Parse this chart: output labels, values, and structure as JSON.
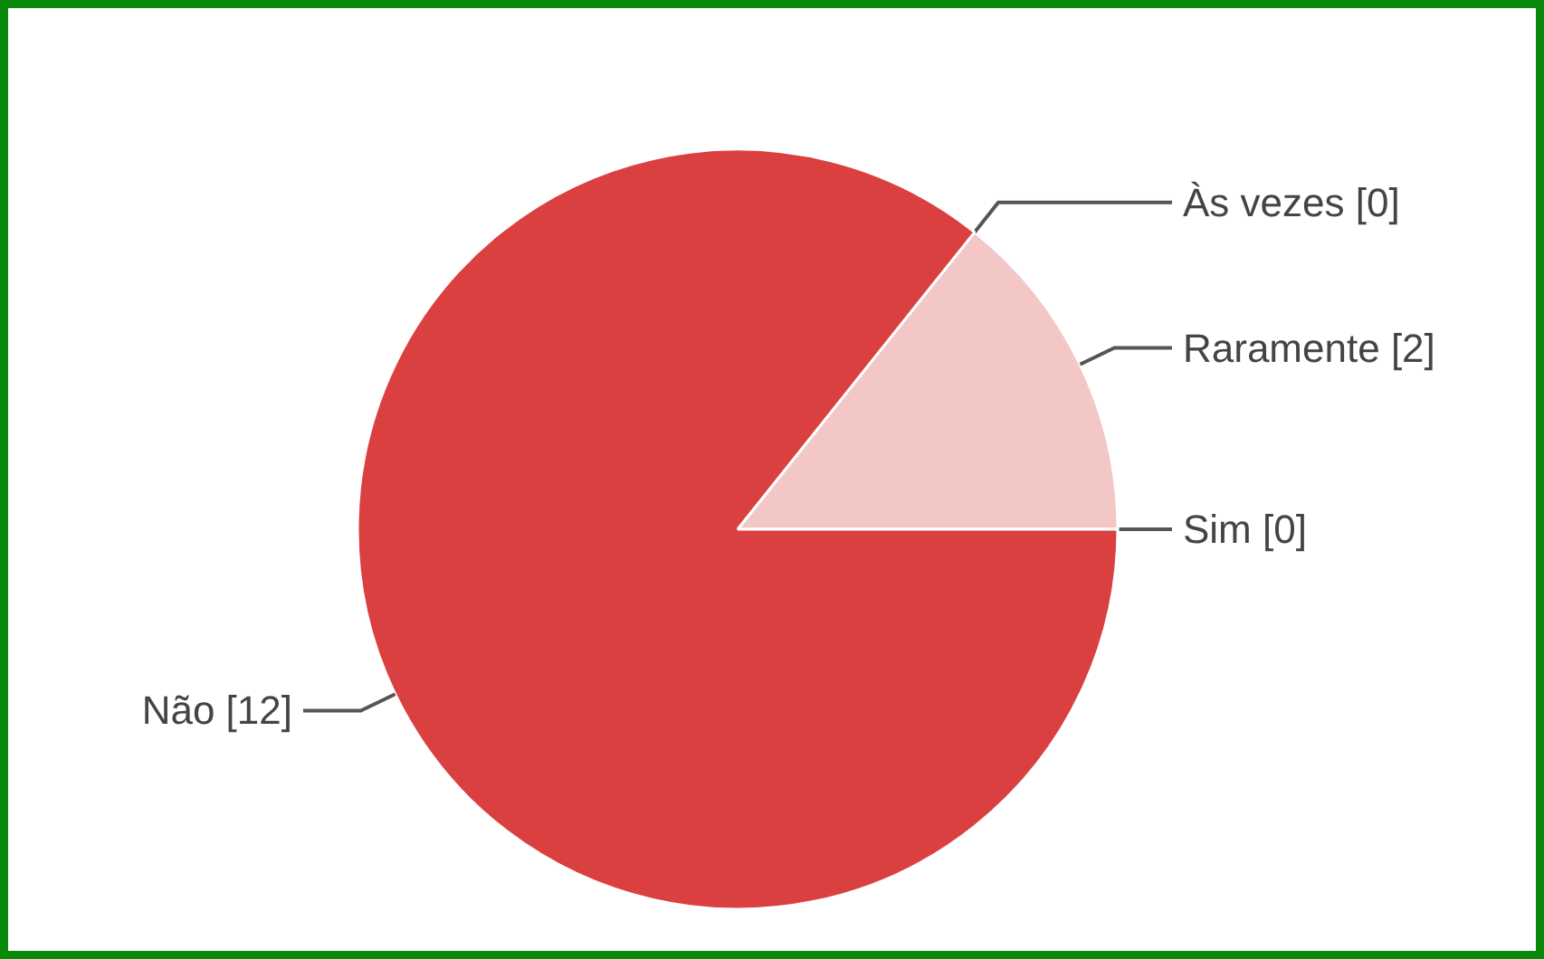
{
  "chart_data": {
    "type": "pie",
    "categories": [
      "Sim [0]",
      "Raramente [2]",
      "Às vezes [0]",
      "Não [12]"
    ],
    "values": [
      0,
      2,
      0,
      12
    ],
    "colors": [
      "#e06666",
      "#f4c7c7",
      "#ea9999",
      "#db4040"
    ]
  }
}
